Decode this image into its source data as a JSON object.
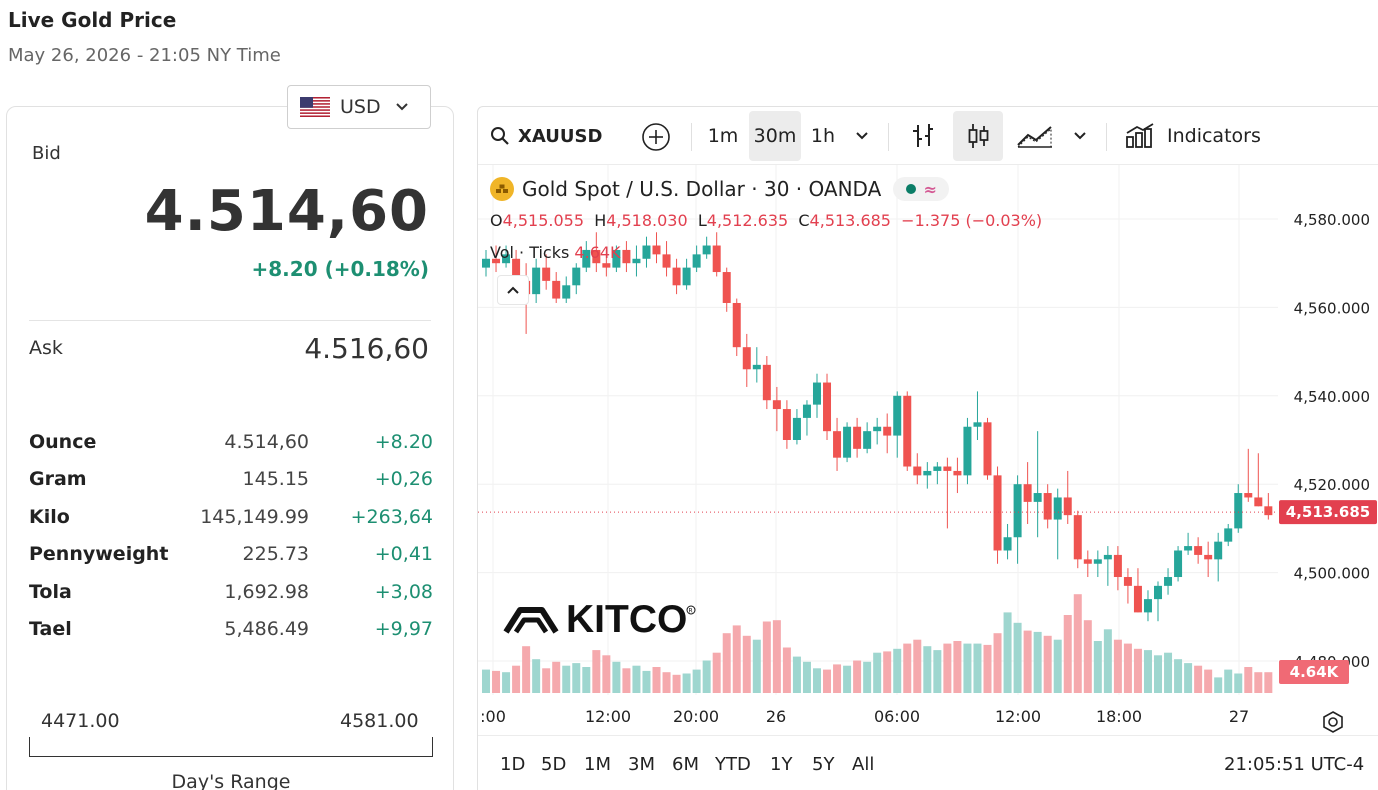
{
  "header": {
    "title": "Live Gold Price",
    "date": "May 26, 2026 - 21:05 NY Time"
  },
  "currency": {
    "label": "USD",
    "flag_icon": "us-flag-icon"
  },
  "bid": {
    "label": "Bid",
    "price": "4.514,60",
    "change": "+8.20 (+0.18%)"
  },
  "ask": {
    "label": "Ask",
    "price": "4.516,60"
  },
  "units": [
    {
      "name": "Ounce",
      "price": "4.514,60",
      "change": "+8.20"
    },
    {
      "name": "Gram",
      "price": "145.15",
      "change": "+0,26"
    },
    {
      "name": "Kilo",
      "price": "145,149.99",
      "change": "+263,64"
    },
    {
      "name": "Pennyweight",
      "price": "225.73",
      "change": "+0,41"
    },
    {
      "name": "Tola",
      "price": "1,692.98",
      "change": "+3,08"
    },
    {
      "name": "Tael",
      "price": "5,486.49",
      "change": "+9,97"
    }
  ],
  "day_range": {
    "low": "4471.00",
    "high": "4581.00",
    "label": "Day's Range"
  },
  "toolbar": {
    "symbol": "XAUUSD",
    "intervals": [
      "1m",
      "30m",
      "1h"
    ],
    "active_interval": "30m",
    "indicators_label": "Indicators"
  },
  "legend": {
    "title": "Gold Spot / U.S. Dollar · 30 · OANDA",
    "o_label": "O",
    "o": "4,515.055",
    "h_label": "H",
    "h": "4,518.030",
    "l_label": "L",
    "l": "4,512.635",
    "c_label": "C",
    "c": "4,513.685",
    "change": "−1.375 (−0.03%)",
    "vol_label": "Vol · Ticks",
    "vol_value": "4.64K"
  },
  "watermark": "KITCO",
  "colors": {
    "up": "#26a69a",
    "down": "#ef5350",
    "gain_text": "#1d8f72",
    "gold": "#f0b528"
  },
  "chart_data": {
    "type": "candlestick",
    "symbol": "XAUUSD",
    "interval": "30m",
    "price_axis_labels": [
      "4,580.000",
      "4,560.000",
      "4,540.000",
      "4,520.000",
      "4,500.000",
      "4,480.000"
    ],
    "price_ticks": [
      4580,
      4560,
      4540,
      4520,
      4500,
      4480
    ],
    "time_axis_labels": [
      ":00",
      "12:00",
      "20:00",
      "26",
      "06:00",
      "12:00",
      "18:00",
      "27"
    ],
    "last_price_label": "4,513.685",
    "last_price": 4513.685,
    "volume_label": "4.64K",
    "candles": [
      [
        4569,
        4573,
        4567,
        4571
      ],
      [
        4571,
        4574,
        4568,
        4570
      ],
      [
        4570,
        4574,
        4569,
        4572
      ],
      [
        4571,
        4573,
        4565,
        4566
      ],
      [
        4566,
        4570,
        4554,
        4563
      ],
      [
        4563,
        4571,
        4561,
        4569
      ],
      [
        4569,
        4572,
        4564,
        4566
      ],
      [
        4566,
        4568,
        4561,
        4562
      ],
      [
        4562,
        4567,
        4561,
        4565
      ],
      [
        4565,
        4570,
        4563,
        4569
      ],
      [
        4569,
        4575,
        4568,
        4573
      ],
      [
        4573,
        4577,
        4568,
        4570
      ],
      [
        4570,
        4573,
        4567,
        4569
      ],
      [
        4569,
        4574,
        4568,
        4573
      ],
      [
        4573,
        4575,
        4568,
        4570
      ],
      [
        4570,
        4574,
        4567,
        4571
      ],
      [
        4571,
        4576,
        4569,
        4574
      ],
      [
        4574,
        4577,
        4570,
        4572
      ],
      [
        4572,
        4575,
        4567,
        4569
      ],
      [
        4569,
        4571,
        4563,
        4565
      ],
      [
        4565,
        4571,
        4564,
        4569
      ],
      [
        4569,
        4574,
        4568,
        4572
      ],
      [
        4572,
        4576,
        4571,
        4574
      ],
      [
        4574,
        4577,
        4567,
        4568
      ],
      [
        4568,
        4569,
        4559,
        4561
      ],
      [
        4561,
        4562,
        4549,
        4551
      ],
      [
        4551,
        4554,
        4542,
        4546
      ],
      [
        4546,
        4551,
        4543,
        4547
      ],
      [
        4547,
        4549,
        4537,
        4539
      ],
      [
        4539,
        4542,
        4532,
        4537
      ],
      [
        4537,
        4539,
        4528,
        4530
      ],
      [
        4530,
        4537,
        4529,
        4535
      ],
      [
        4535,
        4539,
        4531,
        4538
      ],
      [
        4538,
        4545,
        4535,
        4543
      ],
      [
        4543,
        4545,
        4530,
        4532
      ],
      [
        4532,
        4535,
        4523,
        4526
      ],
      [
        4526,
        4534,
        4525,
        4533
      ],
      [
        4533,
        4535,
        4526,
        4528
      ],
      [
        4528,
        4534,
        4527,
        4532
      ],
      [
        4532,
        4535,
        4529,
        4533
      ],
      [
        4533,
        4536,
        4527,
        4531
      ],
      [
        4531,
        4541,
        4526,
        4540
      ],
      [
        4540,
        4541,
        4523,
        4524
      ],
      [
        4524,
        4527,
        4520,
        4522
      ],
      [
        4522,
        4525,
        4519,
        4523
      ],
      [
        4523,
        4525,
        4520,
        4524
      ],
      [
        4524,
        4526,
        4510,
        4523
      ],
      [
        4523,
        4526,
        4518,
        4522
      ],
      [
        4522,
        4535,
        4520,
        4533
      ],
      [
        4533,
        4541,
        4530,
        4534
      ],
      [
        4534,
        4535,
        4521,
        4522
      ],
      [
        4522,
        4524,
        4502,
        4505
      ],
      [
        4505,
        4511,
        4503,
        4508
      ],
      [
        4508,
        4522,
        4502,
        4520
      ],
      [
        4520,
        4525,
        4511,
        4516
      ],
      [
        4516,
        4532,
        4508,
        4518
      ],
      [
        4518,
        4520,
        4510,
        4512
      ],
      [
        4512,
        4519,
        4503,
        4517
      ],
      [
        4517,
        4523,
        4511,
        4513
      ],
      [
        4513,
        4514,
        4501,
        4503
      ],
      [
        4503,
        4505,
        4499,
        4502
      ],
      [
        4502,
        4505,
        4499,
        4503
      ],
      [
        4503,
        4506,
        4497,
        4504
      ],
      [
        4504,
        4506,
        4496,
        4499
      ],
      [
        4499,
        4501,
        4493,
        4497
      ],
      [
        4497,
        4501,
        4491,
        4491
      ],
      [
        4491,
        4496,
        4489,
        4494
      ],
      [
        4494,
        4498,
        4489,
        4497
      ],
      [
        4497,
        4501,
        4495,
        4499
      ],
      [
        4499,
        4506,
        4498,
        4505
      ],
      [
        4505,
        4509,
        4504,
        4506
      ],
      [
        4506,
        4508,
        4502,
        4504
      ],
      [
        4504,
        4507,
        4499,
        4503
      ],
      [
        4503,
        4509,
        4498,
        4507
      ],
      [
        4507,
        4511,
        4506,
        4510
      ],
      [
        4510,
        4520,
        4509,
        4518
      ],
      [
        4518,
        4528,
        4516,
        4517
      ],
      [
        4517,
        4527,
        4515,
        4515
      ],
      [
        4515,
        4518,
        4512,
        4513
      ]
    ],
    "volume": [
      0.18,
      0.17,
      0.16,
      0.21,
      0.36,
      0.26,
      0.19,
      0.24,
      0.21,
      0.23,
      0.2,
      0.33,
      0.29,
      0.24,
      0.19,
      0.21,
      0.17,
      0.2,
      0.16,
      0.14,
      0.15,
      0.18,
      0.25,
      0.31,
      0.46,
      0.52,
      0.44,
      0.41,
      0.55,
      0.56,
      0.35,
      0.28,
      0.24,
      0.19,
      0.18,
      0.22,
      0.21,
      0.25,
      0.24,
      0.31,
      0.32,
      0.34,
      0.38,
      0.41,
      0.36,
      0.33,
      0.38,
      0.4,
      0.38,
      0.38,
      0.37,
      0.46,
      0.62,
      0.54,
      0.48,
      0.47,
      0.44,
      0.41,
      0.6,
      0.76,
      0.56,
      0.4,
      0.49,
      0.41,
      0.38,
      0.34,
      0.33,
      0.29,
      0.31,
      0.26,
      0.23,
      0.21,
      0.18,
      0.12,
      0.18,
      0.15,
      0.2,
      0.16,
      0.16
    ],
    "y_range": [
      4471,
      4583
    ]
  }
}
